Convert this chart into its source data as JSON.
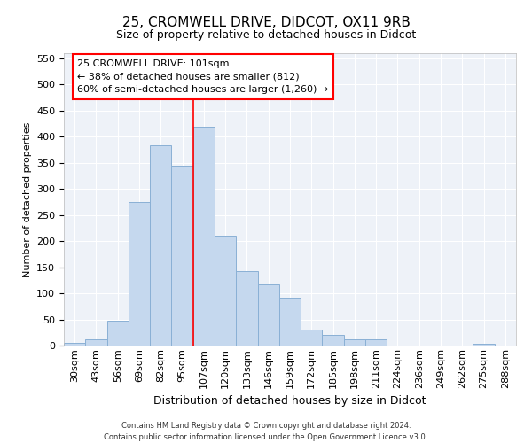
{
  "title": "25, CROMWELL DRIVE, DIDCOT, OX11 9RB",
  "subtitle": "Size of property relative to detached houses in Didcot",
  "xlabel": "Distribution of detached houses by size in Didcot",
  "ylabel": "Number of detached properties",
  "categories": [
    "30sqm",
    "43sqm",
    "56sqm",
    "69sqm",
    "82sqm",
    "95sqm",
    "107sqm",
    "120sqm",
    "133sqm",
    "146sqm",
    "159sqm",
    "172sqm",
    "185sqm",
    "198sqm",
    "211sqm",
    "224sqm",
    "236sqm",
    "249sqm",
    "262sqm",
    "275sqm",
    "288sqm"
  ],
  "values": [
    5,
    12,
    48,
    275,
    383,
    345,
    420,
    210,
    143,
    117,
    92,
    30,
    20,
    12,
    12,
    0,
    0,
    0,
    0,
    4,
    0
  ],
  "bar_color": "#c5d8ee",
  "bar_edge_color": "#8ab0d5",
  "background_color": "#eef2f8",
  "grid_color": "#ffffff",
  "annotation_text_line1": "25 CROMWELL DRIVE: 101sqm",
  "annotation_text_line2": "← 38% of detached houses are smaller (812)",
  "annotation_text_line3": "60% of semi-detached houses are larger (1,260) →",
  "red_line_index": 6,
  "ylim": [
    0,
    560
  ],
  "yticks": [
    0,
    50,
    100,
    150,
    200,
    250,
    300,
    350,
    400,
    450,
    500,
    550
  ],
  "footer_line1": "Contains HM Land Registry data © Crown copyright and database right 2024.",
  "footer_line2": "Contains public sector information licensed under the Open Government Licence v3.0.",
  "title_fontsize": 11,
  "subtitle_fontsize": 9,
  "xlabel_fontsize": 9,
  "ylabel_fontsize": 8,
  "tick_fontsize": 8,
  "annotation_fontsize": 8,
  "footer_fontsize": 6
}
